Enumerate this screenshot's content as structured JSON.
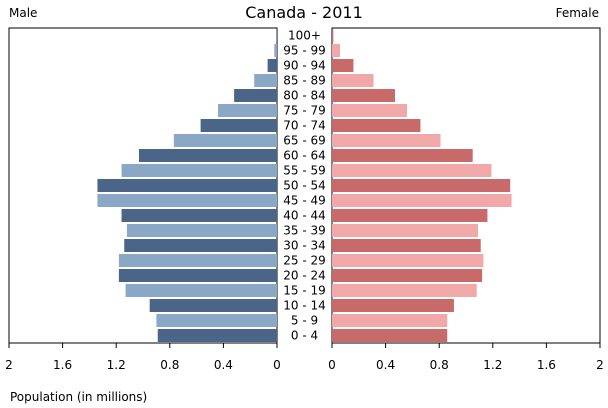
{
  "chart_data": {
    "type": "bar",
    "subtype": "population-pyramid",
    "title": "Canada - 2011",
    "left_label": "Male",
    "right_label": "Female",
    "xlabel": "Population (in millions)",
    "xlim": [
      0,
      2
    ],
    "xticks_left": [
      "2",
      "1.6",
      "1.2",
      "0.8",
      "0.4",
      "0"
    ],
    "xticks_right": [
      "0",
      "0.4",
      "0.8",
      "1.2",
      "1.6",
      "2"
    ],
    "categories": [
      "100+",
      "95 - 99",
      "90 - 94",
      "85 - 89",
      "80 - 84",
      "75 - 79",
      "70 - 74",
      "65 - 69",
      "60 - 64",
      "55 - 59",
      "50 - 54",
      "45 - 49",
      "40 - 44",
      "35 - 39",
      "30 - 34",
      "25 - 29",
      "20 - 24",
      "15 - 19",
      "10 - 14",
      "5 - 9",
      "0 - 4"
    ],
    "series": [
      {
        "name": "Male",
        "values": [
          0.005,
          0.02,
          0.07,
          0.17,
          0.32,
          0.44,
          0.57,
          0.77,
          1.03,
          1.16,
          1.34,
          1.34,
          1.16,
          1.12,
          1.14,
          1.18,
          1.18,
          1.13,
          0.95,
          0.9,
          0.89
        ],
        "colors": [
          "#8aa8c6",
          "#4a6587"
        ]
      },
      {
        "name": "Female",
        "values": [
          0.01,
          0.06,
          0.16,
          0.31,
          0.47,
          0.56,
          0.66,
          0.81,
          1.05,
          1.19,
          1.33,
          1.34,
          1.16,
          1.09,
          1.11,
          1.13,
          1.12,
          1.08,
          0.91,
          0.86,
          0.86
        ],
        "colors": [
          "#f0a8a8",
          "#c96a6a"
        ]
      }
    ],
    "grid": false,
    "colors": {
      "axis": "#000000",
      "tick_text": "#000000"
    }
  }
}
